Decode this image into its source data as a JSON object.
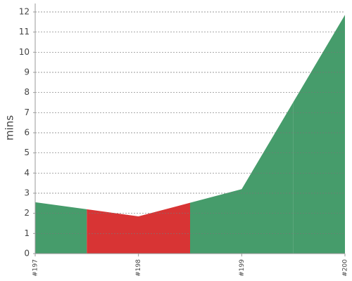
{
  "chart_data": {
    "type": "area",
    "y_label": "mins",
    "categories": [
      "#197",
      "#198",
      "#199",
      "#200"
    ],
    "series": [
      {
        "values": [
          2.55,
          1.85,
          3.2,
          11.85
        ],
        "point_colors": [
          "#469c6b",
          "#d83434",
          "#469c6b",
          "#469c6b"
        ]
      }
    ],
    "ylim": [
      0,
      12
    ],
    "yticks": [
      0,
      1,
      2,
      3,
      4,
      5,
      6,
      7,
      8,
      9,
      10,
      11,
      12
    ],
    "grid": true
  }
}
